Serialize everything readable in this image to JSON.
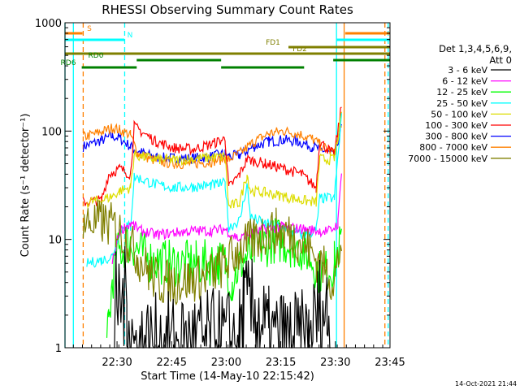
{
  "chart_data": {
    "type": "line",
    "title": "RHESSI Observing Summary Count Rates",
    "xlabel": "Start Time (14-May-10 22:15:42)",
    "ylabel": "Count Rate (s⁻¹ detector⁻¹)",
    "yscale": "log",
    "ylim": [
      1,
      1000
    ],
    "xlim_minutes": [
      0,
      89.3
    ],
    "x_unit": "minutes after 22:15:42",
    "x_ticks": [
      {
        "label": "22:30",
        "min": 14.3
      },
      {
        "label": "22:45",
        "min": 29.3
      },
      {
        "label": "23:00",
        "min": 44.3
      },
      {
        "label": "23:15",
        "min": 59.3
      },
      {
        "label": "23:30",
        "min": 74.3
      },
      {
        "label": "23:45",
        "min": 89.3
      }
    ],
    "y_ticks": [
      {
        "label": "1",
        "value": 1
      },
      {
        "label": "10",
        "value": 10
      },
      {
        "label": "100",
        "value": 100
      },
      {
        "label": "1000",
        "value": 1000
      }
    ],
    "legend_header": [
      "Det 1,3,4,5,6,9,",
      "Att 0"
    ],
    "legend_position": "right",
    "series": [
      {
        "name": "3 - 6 keV",
        "color": "#000000",
        "points": [
          [
            13.6,
            1.0
          ],
          [
            14,
            2.6
          ],
          [
            17,
            2.8
          ],
          [
            19,
            1.0
          ],
          [
            48,
            1.2
          ],
          [
            49,
            2.4
          ],
          [
            53,
            2.0
          ],
          [
            56,
            1.2
          ],
          [
            67,
            1.1
          ],
          [
            70,
            2.4
          ],
          [
            72,
            2.1
          ],
          [
            73,
            1.2
          ]
        ]
      },
      {
        "name": "6 - 12 keV",
        "color": "#ff00ff",
        "points": [
          [
            13,
            6
          ],
          [
            15,
            12
          ],
          [
            18,
            14
          ],
          [
            21,
            12
          ],
          [
            25,
            11
          ],
          [
            30,
            11.5
          ],
          [
            35,
            12
          ],
          [
            40,
            12
          ],
          [
            44,
            12.4
          ],
          [
            48,
            10
          ],
          [
            50,
            11
          ],
          [
            55,
            12.5
          ],
          [
            60,
            13
          ],
          [
            65,
            12.5
          ],
          [
            70,
            12
          ],
          [
            73,
            12
          ],
          [
            75,
            14
          ],
          [
            76,
            45
          ]
        ]
      },
      {
        "name": "12 - 25 keV",
        "color": "#00ff00",
        "points": [
          [
            11.5,
            1.0
          ],
          [
            12,
            1.6
          ],
          [
            13,
            4
          ],
          [
            14,
            7
          ],
          [
            16,
            8.5
          ],
          [
            18,
            9.5
          ],
          [
            20,
            8
          ],
          [
            23,
            6.5
          ],
          [
            30,
            6
          ],
          [
            36,
            6
          ],
          [
            42,
            6.2
          ],
          [
            44,
            6
          ],
          [
            46,
            4
          ],
          [
            48,
            6
          ],
          [
            52,
            8
          ],
          [
            55,
            9
          ],
          [
            58,
            10
          ],
          [
            62,
            9
          ],
          [
            66,
            8
          ],
          [
            70,
            5
          ],
          [
            72,
            5
          ],
          [
            74,
            6
          ],
          [
            76,
            10
          ]
        ]
      },
      {
        "name": "25 - 50 keV",
        "color": "#00ffff",
        "points": [
          [
            6,
            6
          ],
          [
            10,
            6.4
          ],
          [
            13,
            7
          ],
          [
            15,
            12
          ],
          [
            17,
            13.5
          ],
          [
            18,
            13
          ],
          [
            19,
            38
          ],
          [
            25,
            32
          ],
          [
            30,
            30
          ],
          [
            35,
            30.5
          ],
          [
            40,
            31.5
          ],
          [
            44,
            33
          ],
          [
            45,
            13
          ],
          [
            48,
            15
          ],
          [
            50,
            32
          ],
          [
            51,
            16
          ],
          [
            55,
            14
          ],
          [
            60,
            13
          ],
          [
            65,
            11
          ],
          [
            69,
            12
          ],
          [
            70,
            24
          ],
          [
            74,
            24
          ],
          [
            76,
            140
          ]
        ]
      },
      {
        "name": "50 - 100 keV",
        "color": "#dddd00",
        "points": [
          [
            6,
            22
          ],
          [
            10,
            23
          ],
          [
            13,
            25
          ],
          [
            15,
            28
          ],
          [
            18,
            30
          ],
          [
            19,
            60
          ],
          [
            25,
            55
          ],
          [
            30,
            54
          ],
          [
            35,
            55.5
          ],
          [
            40,
            57
          ],
          [
            44,
            58
          ],
          [
            45,
            20
          ],
          [
            48,
            22
          ],
          [
            50,
            40
          ],
          [
            51,
            28
          ],
          [
            55,
            27
          ],
          [
            60,
            25
          ],
          [
            65,
            23
          ],
          [
            69,
            22
          ],
          [
            70,
            55
          ],
          [
            74,
            55
          ],
          [
            76,
            140
          ]
        ]
      },
      {
        "name": "100 - 300 keV",
        "color": "#ff0000",
        "points": [
          [
            5,
            22
          ],
          [
            10,
            23
          ],
          [
            12,
            40
          ],
          [
            15,
            45
          ],
          [
            18,
            40
          ],
          [
            19,
            110
          ],
          [
            25,
            80
          ],
          [
            30,
            70
          ],
          [
            35,
            68
          ],
          [
            40,
            75
          ],
          [
            44,
            85
          ],
          [
            45,
            30
          ],
          [
            48,
            40
          ],
          [
            50,
            55
          ],
          [
            55,
            50
          ],
          [
            60,
            45
          ],
          [
            65,
            40
          ],
          [
            69,
            30
          ],
          [
            70,
            80
          ],
          [
            74,
            60
          ],
          [
            76,
            170
          ]
        ]
      },
      {
        "name": "300 - 800 keV",
        "color": "#0000ff",
        "points": [
          [
            5,
            72
          ],
          [
            10,
            82
          ],
          [
            13,
            90
          ],
          [
            15,
            86
          ],
          [
            18,
            72
          ],
          [
            20,
            65
          ],
          [
            25,
            57
          ],
          [
            30,
            56
          ],
          [
            35,
            56
          ],
          [
            40,
            58
          ],
          [
            44,
            62
          ],
          [
            45,
            58
          ],
          [
            48,
            60
          ],
          [
            52,
            72
          ],
          [
            56,
            80
          ],
          [
            60,
            83
          ],
          [
            64,
            80
          ],
          [
            68,
            72
          ],
          [
            70,
            68
          ],
          [
            72,
            65
          ],
          [
            74,
            58
          ],
          [
            76,
            110
          ]
        ]
      },
      {
        "name": "800 - 7000 keV",
        "color": "#ff8000",
        "points": [
          [
            5,
            88
          ],
          [
            10,
            98
          ],
          [
            13,
            107
          ],
          [
            15,
            103
          ],
          [
            18,
            92
          ],
          [
            20,
            62
          ],
          [
            25,
            53
          ],
          [
            30,
            50
          ],
          [
            35,
            50
          ],
          [
            40,
            52
          ],
          [
            44,
            56
          ],
          [
            45,
            55
          ],
          [
            48,
            62
          ],
          [
            52,
            80
          ],
          [
            56,
            95
          ],
          [
            60,
            100
          ],
          [
            64,
            95
          ],
          [
            68,
            85
          ],
          [
            70,
            75
          ],
          [
            72,
            68
          ],
          [
            74,
            62
          ],
          [
            76,
            120
          ]
        ]
      },
      {
        "name": "7000 - 15000 keV",
        "color": "#7f7f00",
        "points": [
          [
            5,
            14
          ],
          [
            10,
            14.5
          ],
          [
            14,
            13
          ],
          [
            17,
            10
          ],
          [
            20,
            7
          ],
          [
            23,
            5
          ],
          [
            26,
            4
          ],
          [
            30,
            4
          ],
          [
            34,
            4.2
          ],
          [
            38,
            4.5
          ],
          [
            41,
            5
          ],
          [
            44,
            6
          ],
          [
            46,
            7
          ],
          [
            48,
            8
          ],
          [
            52,
            10
          ],
          [
            55,
            11.5
          ],
          [
            58,
            12
          ],
          [
            61,
            11.5
          ],
          [
            64,
            10
          ],
          [
            67,
            8
          ],
          [
            70,
            6
          ],
          [
            72,
            5
          ],
          [
            74,
            4
          ],
          [
            76,
            10
          ]
        ]
      }
    ],
    "vlines": [
      {
        "min": 0,
        "color": "#00ffff",
        "style": "solid"
      },
      {
        "min": 2.3,
        "color": "#00ffff",
        "style": "solid"
      },
      {
        "min": 5,
        "color": "#ff8000",
        "style": "dashed"
      },
      {
        "min": 16.4,
        "color": "#00ffff",
        "style": "dashed"
      },
      {
        "min": 74.6,
        "color": "#00ffff",
        "style": "solid"
      },
      {
        "min": 76.7,
        "color": "#ff8000",
        "style": "solid"
      },
      {
        "min": 87.9,
        "color": "#ff8000",
        "style": "dashed"
      },
      {
        "min": 88.8,
        "color": "#00ffff",
        "style": "dashed"
      }
    ],
    "annotations": [
      {
        "label": "S",
        "color": "#ff8000",
        "segments": [
          [
            0,
            4.8
          ],
          [
            77,
            89.3
          ]
        ],
        "level": 1
      },
      {
        "label": "N",
        "color": "#00ffff",
        "segments": [
          [
            0,
            16.3
          ],
          [
            74.6,
            89.3
          ]
        ],
        "level": 2
      },
      {
        "label": "FD1",
        "color": "#7f7f00",
        "segments": [
          [
            61.4,
            89.3
          ]
        ],
        "level": 3
      },
      {
        "label": "",
        "color": "#7f7f00",
        "segments": [
          [
            0,
            89.3
          ]
        ],
        "level": 4
      },
      {
        "label": "FD2",
        "color": "#7f7f00",
        "segments": [],
        "level": 4
      },
      {
        "label": "RD0",
        "color": "#008000",
        "segments": [
          [
            19.7,
            42.9
          ],
          [
            73.7,
            89.3
          ]
        ],
        "level": 5
      },
      {
        "label": "RD6",
        "color": "#008000",
        "segments": [
          [
            4.6,
            19.7
          ],
          [
            42.9,
            65.7
          ]
        ],
        "level": 6
      }
    ]
  },
  "footer": {
    "timestamp": "14-Oct-2021 21:44"
  }
}
